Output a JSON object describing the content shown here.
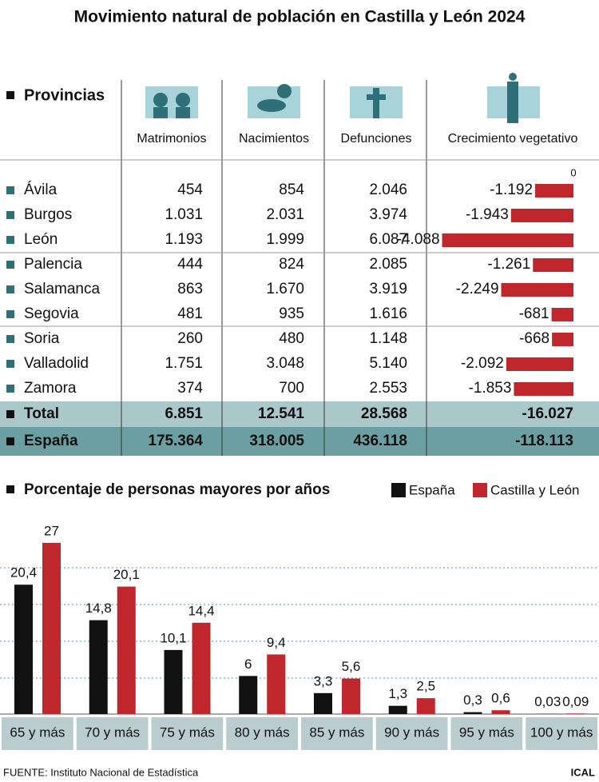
{
  "title": "Movimiento natural de población en Castilla y León 2024",
  "table": {
    "heading": "Provincias",
    "columns": [
      "Matrimonios",
      "Nacimientos",
      "Defunciones"
    ],
    "rows": [
      [
        "Ávila",
        "454",
        "854",
        "2.046"
      ],
      [
        "Burgos",
        "1.031",
        "2.031",
        "3.974"
      ],
      [
        "León",
        "1.193",
        "1.999",
        "6.087"
      ],
      [
        "Palencia",
        "444",
        "824",
        "2.085"
      ],
      [
        "Salamanca",
        "863",
        "1.670",
        "3.919"
      ],
      [
        "Segovia",
        "481",
        "935",
        "1.616"
      ],
      [
        "Soria",
        "260",
        "480",
        "1.148"
      ],
      [
        "Valladolid",
        "1.751",
        "3.048",
        "5.140"
      ],
      [
        "Zamora",
        "374",
        "700",
        "2.553"
      ]
    ],
    "totals": [
      [
        "Total",
        "6.851",
        "12.541",
        "28.568",
        "-16.027"
      ],
      [
        "España",
        "175.364",
        "318.005",
        "436.118",
        "-118.113"
      ]
    ]
  },
  "chart_data": [
    {
      "type": "hbar",
      "title": "Crecimiento vegetativo",
      "values": [
        -1192,
        -1943,
        -4088,
        -1261,
        -2249,
        -681,
        -668,
        -2092,
        -1853
      ],
      "value_labels": [
        "-1.192",
        "-1.943",
        "-4.088",
        "-1.261",
        "-2.249",
        "-681",
        "-668",
        "-2.092",
        "-1.853"
      ],
      "color": "#c0272d",
      "xlim": [
        -4300,
        0
      ],
      "xticks": [
        0
      ]
    },
    {
      "type": "bar",
      "title": "Porcentaje de personas mayores por años",
      "categories": [
        "65 y más",
        "70 y más",
        "75 y más",
        "80 y más",
        "85 y más",
        "90 y más",
        "95 y más",
        "100 y más"
      ],
      "series": [
        {
          "name": "España",
          "color": "#111111",
          "values": [
            20.4,
            14.8,
            10.1,
            6,
            3.3,
            1.3,
            0.3,
            0.03
          ],
          "value_labels": [
            "20,4",
            "14,8",
            "10,1",
            "6",
            "3,3",
            "1,3",
            "0,3",
            "0,03"
          ]
        },
        {
          "name": "Castilla y León",
          "color": "#c0272d",
          "values": [
            27,
            20.1,
            14.4,
            9.4,
            5.6,
            2.5,
            0.6,
            0.09
          ],
          "value_labels": [
            "27",
            "20,1",
            "14,4",
            "9,4",
            "5,6",
            "2,5",
            "0,6",
            "0,09"
          ]
        }
      ],
      "ylim": [
        0,
        28.5
      ],
      "grid": true
    }
  ],
  "source": "FUENTE: Instituto Nacional de Estadística",
  "brand": "ICAL"
}
